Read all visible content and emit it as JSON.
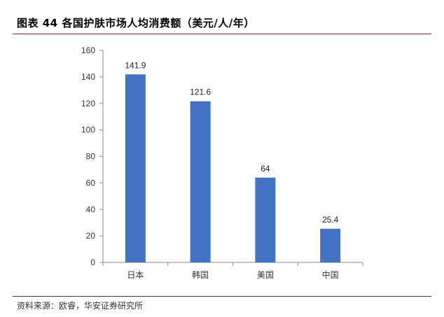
{
  "header": {
    "title": "图表 44  各国护肤市场人均消费额（美元/人/年）"
  },
  "footer": {
    "source": "资料来源：欧睿，华安证券研究所"
  },
  "chart_data": {
    "type": "bar",
    "categories": [
      "日本",
      "韩国",
      "美国",
      "中国"
    ],
    "values": [
      141.9,
      121.6,
      64,
      25.4
    ],
    "value_labels": [
      "141.9",
      "121.6",
      "64",
      "25.4"
    ],
    "title": "",
    "xlabel": "",
    "ylabel": "",
    "ylim": [
      0,
      160
    ],
    "yticks": [
      0,
      20,
      40,
      60,
      80,
      100,
      120,
      140,
      160
    ],
    "grid": false,
    "legend": "none",
    "bar_color": "#4472C4"
  }
}
